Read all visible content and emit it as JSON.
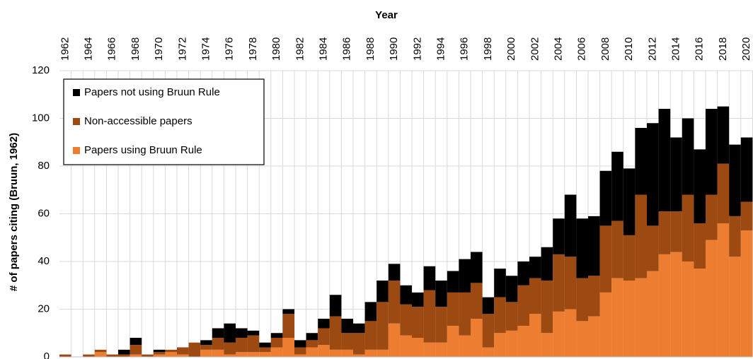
{
  "chart_data": {
    "type": "stacked-bar",
    "x_label": "Year",
    "y_label": "# of papers citing (Bruun, 1962)",
    "categories": [
      "1962",
      null,
      "1964",
      null,
      "1966",
      null,
      "1968",
      null,
      "1970",
      null,
      "1972",
      null,
      "1974",
      null,
      "1976",
      null,
      "1978",
      null,
      "1980",
      null,
      "1982",
      null,
      "1984",
      null,
      "1986",
      null,
      "1988",
      null,
      "1990",
      null,
      "1992",
      null,
      "1994",
      null,
      "1996",
      null,
      "1998",
      null,
      "2000",
      null,
      "2002",
      null,
      "2004",
      null,
      "2006",
      null,
      "2008",
      null,
      "2010",
      null,
      "2012",
      null,
      "2014",
      null,
      "2016",
      null,
      "2018",
      null,
      "2020"
    ],
    "series": [
      {
        "name": "Papers using Bruun Rule",
        "color": "#ed7d31",
        "values": [
          0,
          0,
          0,
          2,
          0,
          0,
          1,
          0,
          1,
          2,
          1,
          0,
          3,
          3,
          1,
          2,
          2,
          2,
          4,
          8,
          1,
          4,
          5,
          3,
          3,
          1,
          3,
          3,
          14,
          9,
          8,
          6,
          6,
          13,
          9,
          16,
          4,
          10,
          11,
          13,
          18,
          10,
          19,
          20,
          15,
          17,
          27,
          33,
          32,
          33,
          36,
          43,
          44,
          40,
          37,
          49,
          56,
          42,
          53
        ]
      },
      {
        "name": "Non-accessible papers",
        "color": "#9c4a12",
        "values": [
          1,
          0,
          1,
          1,
          1,
          1,
          4,
          1,
          1,
          1,
          3,
          6,
          2,
          5,
          5,
          6,
          7,
          2,
          4,
          10,
          3,
          3,
          7,
          14,
          7,
          9,
          12,
          20,
          18,
          13,
          13,
          22,
          15,
          14,
          18,
          15,
          14,
          15,
          12,
          17,
          15,
          22,
          24,
          22,
          18,
          17,
          28,
          24,
          19,
          35,
          19,
          18,
          17,
          28,
          19,
          19,
          25,
          17,
          12
        ]
      },
      {
        "name": "Papers not using Bruun Rule",
        "color": "#000000",
        "values": [
          0,
          0,
          0,
          0,
          0,
          2,
          3,
          0,
          1,
          0,
          0,
          0,
          2,
          4,
          8,
          4,
          2,
          2,
          2,
          2,
          3,
          3,
          4,
          9,
          6,
          4,
          8,
          9,
          7,
          8,
          6,
          10,
          11,
          9,
          14,
          13,
          7,
          12,
          11,
          10,
          9,
          14,
          15,
          26,
          25,
          25,
          23,
          29,
          28,
          28,
          43,
          43,
          31,
          32,
          31,
          36,
          24,
          30,
          27
        ]
      }
    ],
    "ylim": [
      0,
      120
    ],
    "yticks": [
      0,
      20,
      40,
      60,
      80,
      100,
      120
    ],
    "grid": true,
    "legend": "upper left"
  }
}
